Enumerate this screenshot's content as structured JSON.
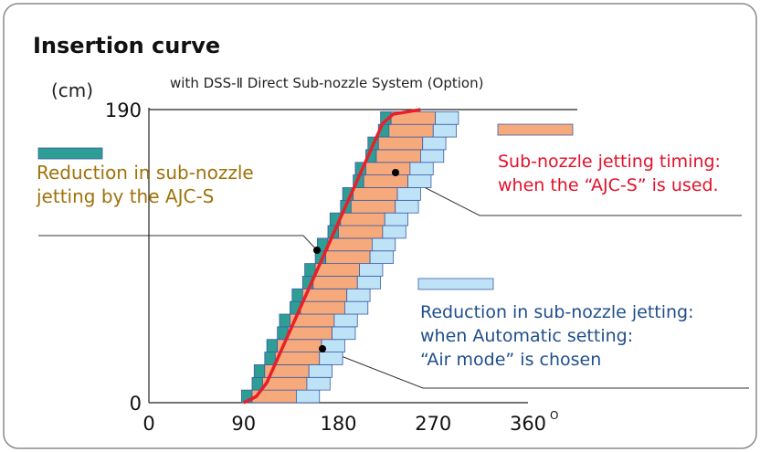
{
  "chart_data": {
    "type": "timing",
    "title": "Insertion curve",
    "subtitle": "with DSS-Ⅱ Direct Sub-nozzle System (Option)",
    "y_unit": "(cm)",
    "x_unit": "O",
    "xlim": [
      0,
      360
    ],
    "ylim": [
      0,
      190
    ],
    "xticks": [
      0,
      90,
      180,
      270,
      360
    ],
    "yticks": [
      0,
      190
    ],
    "rows": [
      0,
      8.2,
      16.4,
      24.6,
      32.8,
      41,
      49.2,
      57.4,
      65.6,
      73.8,
      82,
      90.2,
      98.4,
      106.6,
      114.8,
      123,
      131.2,
      139.4,
      147.6,
      155.8,
      164,
      172.2,
      180.4
    ],
    "row_height": 8.2,
    "series": [
      {
        "legend": [
          "Reduction in sub-nozzle",
          "jetting by the AJC-S"
        ],
        "color": "#2e9e94",
        "text_color": "#a0720a",
        "start": [
          88,
          98,
          100,
          110,
          112,
          122,
          124,
          134,
          136,
          146,
          148,
          158,
          160,
          170,
          172,
          182,
          184,
          194,
          196,
          206,
          208,
          218,
          220
        ],
        "end": [
          98,
          108,
          110,
          120,
          122,
          132,
          134,
          144,
          146,
          156,
          158,
          168,
          170,
          180,
          182,
          192,
          194,
          204,
          206,
          216,
          218,
          228,
          230
        ]
      },
      {
        "legend": [
          "Sub-nozzle jetting timing:",
          "when the “AJC-S” is used."
        ],
        "color": "#f6a97a",
        "text_color": "#e4102a",
        "start": [
          98,
          108,
          110,
          120,
          122,
          132,
          134,
          144,
          146,
          156,
          158,
          168,
          170,
          180,
          182,
          192,
          194,
          204,
          206,
          216,
          218,
          228,
          230
        ],
        "end": [
          140,
          150,
          152,
          162,
          164,
          174,
          176,
          186,
          188,
          198,
          200,
          210,
          212,
          222,
          224,
          234,
          236,
          246,
          248,
          258,
          260,
          270,
          272
        ]
      },
      {
        "legend": [
          "Reduction in sub-nozzle jetting:",
          "when Automatic setting:",
          "“Air mode” is chosen"
        ],
        "color": "#bfe3f6",
        "text_color": "#1f4e8c",
        "start": [
          140,
          150,
          152,
          162,
          164,
          174,
          176,
          186,
          188,
          198,
          200,
          210,
          212,
          222,
          224,
          234,
          236,
          246,
          248,
          258,
          260,
          270,
          272
        ],
        "end": [
          162,
          172,
          174,
          184,
          186,
          196,
          198,
          208,
          210,
          220,
          222,
          232,
          234,
          244,
          246,
          256,
          258,
          268,
          270,
          280,
          282,
          292,
          294
        ]
      }
    ],
    "curve": {
      "color": "#e8202a",
      "x": [
        90,
        102,
        112,
        222,
        232,
        258
      ],
      "y": [
        0,
        4,
        13,
        181,
        187,
        190
      ]
    }
  }
}
